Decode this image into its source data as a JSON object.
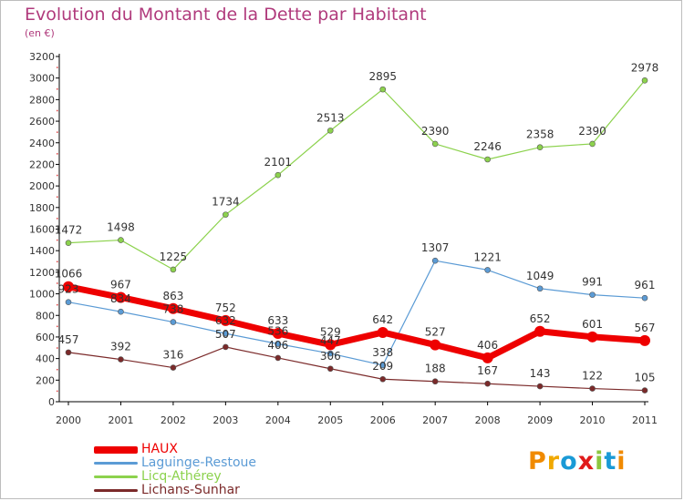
{
  "title": "Evolution du Montant de la Dette par Habitant",
  "unit": "(en €)",
  "brand": {
    "letters": [
      "P",
      "r",
      "o",
      "x",
      "i",
      "t",
      "i"
    ],
    "colors": [
      "#f08a00",
      "#f0a800",
      "#1a9ad6",
      "#e01a1a",
      "#8cc63f",
      "#1a9ad6",
      "#f08a00"
    ]
  },
  "chart_data": {
    "type": "line",
    "title": "Evolution du Montant de la Dette par Habitant",
    "subtitle": "(en €)",
    "x": [
      "2000",
      "2001",
      "2002",
      "2003",
      "2004",
      "2005",
      "2006",
      "2007",
      "2008",
      "2009",
      "2010",
      "2011"
    ],
    "ylim": [
      0,
      3200
    ],
    "yticks": [
      0,
      200,
      400,
      600,
      800,
      1000,
      1200,
      1400,
      1600,
      1800,
      2000,
      2200,
      2400,
      2600,
      2800,
      3000,
      3200
    ],
    "grid": false,
    "legend_position": "bottom-left",
    "series": [
      {
        "name": "HAUX",
        "color": "#ee0000",
        "values": [
          1066,
          967,
          863,
          752,
          633,
          529,
          642,
          527,
          406,
          652,
          601,
          567
        ],
        "labels": [
          "1066",
          "967",
          "863",
          "752",
          "633",
          "529",
          "642",
          "527",
          "406",
          "652",
          "601",
          "567"
        ]
      },
      {
        "name": "Laguinge-Restoue",
        "color": "#5b9bd5",
        "values": [
          923,
          834,
          738,
          632,
          536,
          447,
          338,
          1307,
          1221,
          1049,
          991,
          961
        ],
        "labels": [
          "923",
          "834",
          "738",
          "632",
          "536",
          "447",
          "338",
          "1307",
          "1221",
          "1049",
          "991",
          "961"
        ]
      },
      {
        "name": "Licq-Athérey",
        "color": "#8cd24d",
        "values": [
          1472,
          1498,
          1225,
          1734,
          2101,
          2513,
          2895,
          2390,
          2246,
          2358,
          2390,
          2978
        ],
        "labels": [
          "1472",
          "1498",
          "1225",
          "1734",
          "2101",
          "2513",
          "2895",
          "2390",
          "2246",
          "2358",
          "2390",
          "2978"
        ]
      },
      {
        "name": "Lichans-Sunhar",
        "color": "#7b2a2a",
        "values": [
          457,
          392,
          316,
          507,
          406,
          306,
          209,
          188,
          167,
          143,
          122,
          105
        ],
        "labels": [
          "457",
          "392",
          "316",
          "507",
          "406",
          "306",
          "209",
          "188",
          "167",
          "143",
          "122",
          "105"
        ]
      }
    ]
  }
}
